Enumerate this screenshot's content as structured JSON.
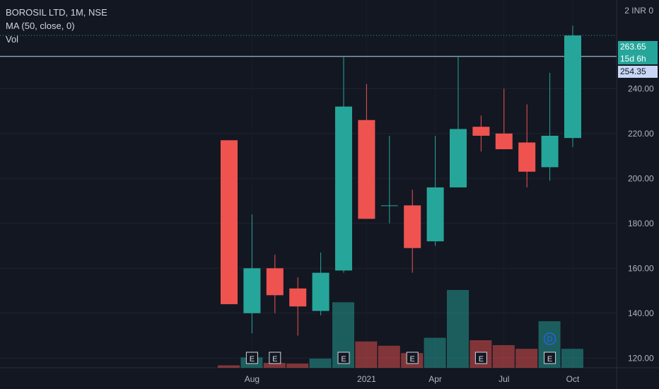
{
  "header": {
    "symbol": "BOROSIL LTD, 1M, NSE",
    "indicator": "MA (50, close, 0)",
    "volume": "Vol",
    "currency": "INR",
    "currency_multiplier": "2"
  },
  "price_tags": {
    "last_price": "263.65",
    "countdown": "15d 6h",
    "hline_price": "254.35"
  },
  "colors": {
    "up": "#26a69a",
    "down": "#ef5350",
    "background": "#131722",
    "hline": "#b2dcf0"
  },
  "chart_data": {
    "type": "candlestick",
    "y_axis": {
      "ylim": [
        116,
        270
      ],
      "ticks": [
        120,
        140,
        160,
        180,
        200,
        220,
        240
      ]
    },
    "x_labels": [
      "Aug",
      "2021",
      "Apr",
      "Jul",
      "Oct"
    ],
    "x_label_index": [
      1,
      6,
      9,
      12,
      15
    ],
    "horizontal_line": 254.35,
    "candles": [
      {
        "month": "Jul 2020",
        "o": 217,
        "h": 217,
        "l": 144,
        "c": 144
      },
      {
        "month": "Aug 2020",
        "o": 140,
        "h": 184,
        "l": 131,
        "c": 160
      },
      {
        "month": "Sep 2020",
        "o": 160,
        "h": 166,
        "l": 140,
        "c": 148
      },
      {
        "month": "Oct 2020",
        "o": 151,
        "h": 156,
        "l": 130,
        "c": 143
      },
      {
        "month": "Nov 2020",
        "o": 141,
        "h": 167,
        "l": 139,
        "c": 158
      },
      {
        "month": "Dec 2020",
        "o": 159,
        "h": 254,
        "l": 158,
        "c": 232
      },
      {
        "month": "Jan 2021",
        "o": 226,
        "h": 242,
        "l": 182,
        "c": 182
      },
      {
        "month": "Feb 2021",
        "o": 188,
        "h": 219,
        "l": 180,
        "c": 188
      },
      {
        "month": "Mar 2021",
        "o": 188,
        "h": 195,
        "l": 158,
        "c": 169
      },
      {
        "month": "Apr 2021",
        "o": 172,
        "h": 219,
        "l": 170,
        "c": 196
      },
      {
        "month": "May 2021",
        "o": 196,
        "h": 254,
        "l": 196,
        "c": 222
      },
      {
        "month": "Jun 2021",
        "o": 223,
        "h": 228,
        "l": 212,
        "c": 219
      },
      {
        "month": "Jul 2021",
        "o": 220,
        "h": 240,
        "l": 213,
        "c": 213
      },
      {
        "month": "Aug 2021",
        "o": 216,
        "h": 233,
        "l": 196,
        "c": 203
      },
      {
        "month": "Sep 2021",
        "o": 205,
        "h": 247,
        "l": 199,
        "c": 219
      },
      {
        "month": "Oct 2021",
        "o": 218,
        "h": 268,
        "l": 214,
        "c": 263.65
      }
    ],
    "volume": [
      {
        "v": 4,
        "up": false
      },
      {
        "v": 17,
        "up": true
      },
      {
        "v": 8,
        "up": false
      },
      {
        "v": 7,
        "up": false
      },
      {
        "v": 15,
        "up": true
      },
      {
        "v": 107,
        "up": true
      },
      {
        "v": 43,
        "up": false
      },
      {
        "v": 36,
        "up": false
      },
      {
        "v": 24,
        "up": false
      },
      {
        "v": 49,
        "up": true
      },
      {
        "v": 127,
        "up": true
      },
      {
        "v": 45,
        "up": false
      },
      {
        "v": 37,
        "up": false
      },
      {
        "v": 31,
        "up": false
      },
      {
        "v": 76,
        "up": true
      },
      {
        "v": 31,
        "up": true
      }
    ],
    "events": [
      {
        "index": 1,
        "label": "E"
      },
      {
        "index": 2,
        "label": "E"
      },
      {
        "index": 5,
        "label": "E"
      },
      {
        "index": 8,
        "label": "E"
      },
      {
        "index": 11,
        "label": "E"
      },
      {
        "index": 14,
        "label": "E"
      },
      {
        "index": 14,
        "label": "D",
        "kind": "dividend"
      }
    ]
  }
}
